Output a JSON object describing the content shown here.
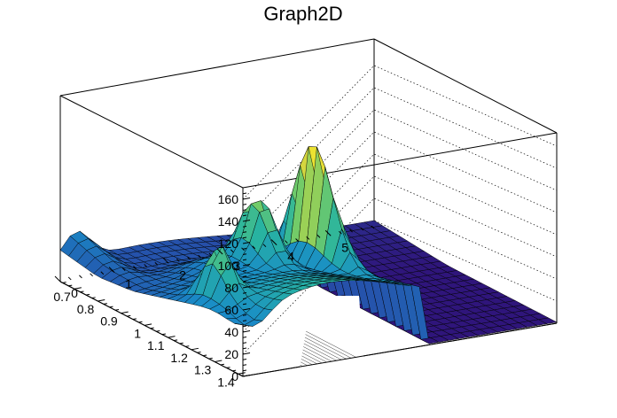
{
  "chart_data": {
    "type": "surface",
    "title": "Graph2D",
    "xlabel": "",
    "ylabel": "",
    "zlabel": "",
    "xlim": [
      0,
      5.8
    ],
    "ylim": [
      0.64,
      1.42
    ],
    "zlim": [
      0,
      168
    ],
    "x_ticks": [
      "0",
      "1",
      "2",
      "3",
      "4",
      "5"
    ],
    "y_ticks": [
      "0.7",
      "0.8",
      "0.9",
      "1",
      "1.1",
      "1.2",
      "1.3",
      "1.4"
    ],
    "z_ticks": [
      "0",
      "20",
      "40",
      "60",
      "80",
      "100",
      "120",
      "140",
      "160"
    ],
    "z_gridlines": true,
    "colormap": "viridis",
    "features": [
      {
        "x": 0.3,
        "y": 1.4,
        "z": 22
      },
      {
        "x": 0.5,
        "y": 1.2,
        "z": 88
      },
      {
        "x": 2.1,
        "y": 1.0,
        "z": 107
      },
      {
        "x": 2.95,
        "y": 1.05,
        "z": 165
      },
      {
        "x": 1.5,
        "y": 0.95,
        "z": 48
      },
      {
        "x": 0.8,
        "y": 0.7,
        "z": 62
      }
    ]
  }
}
